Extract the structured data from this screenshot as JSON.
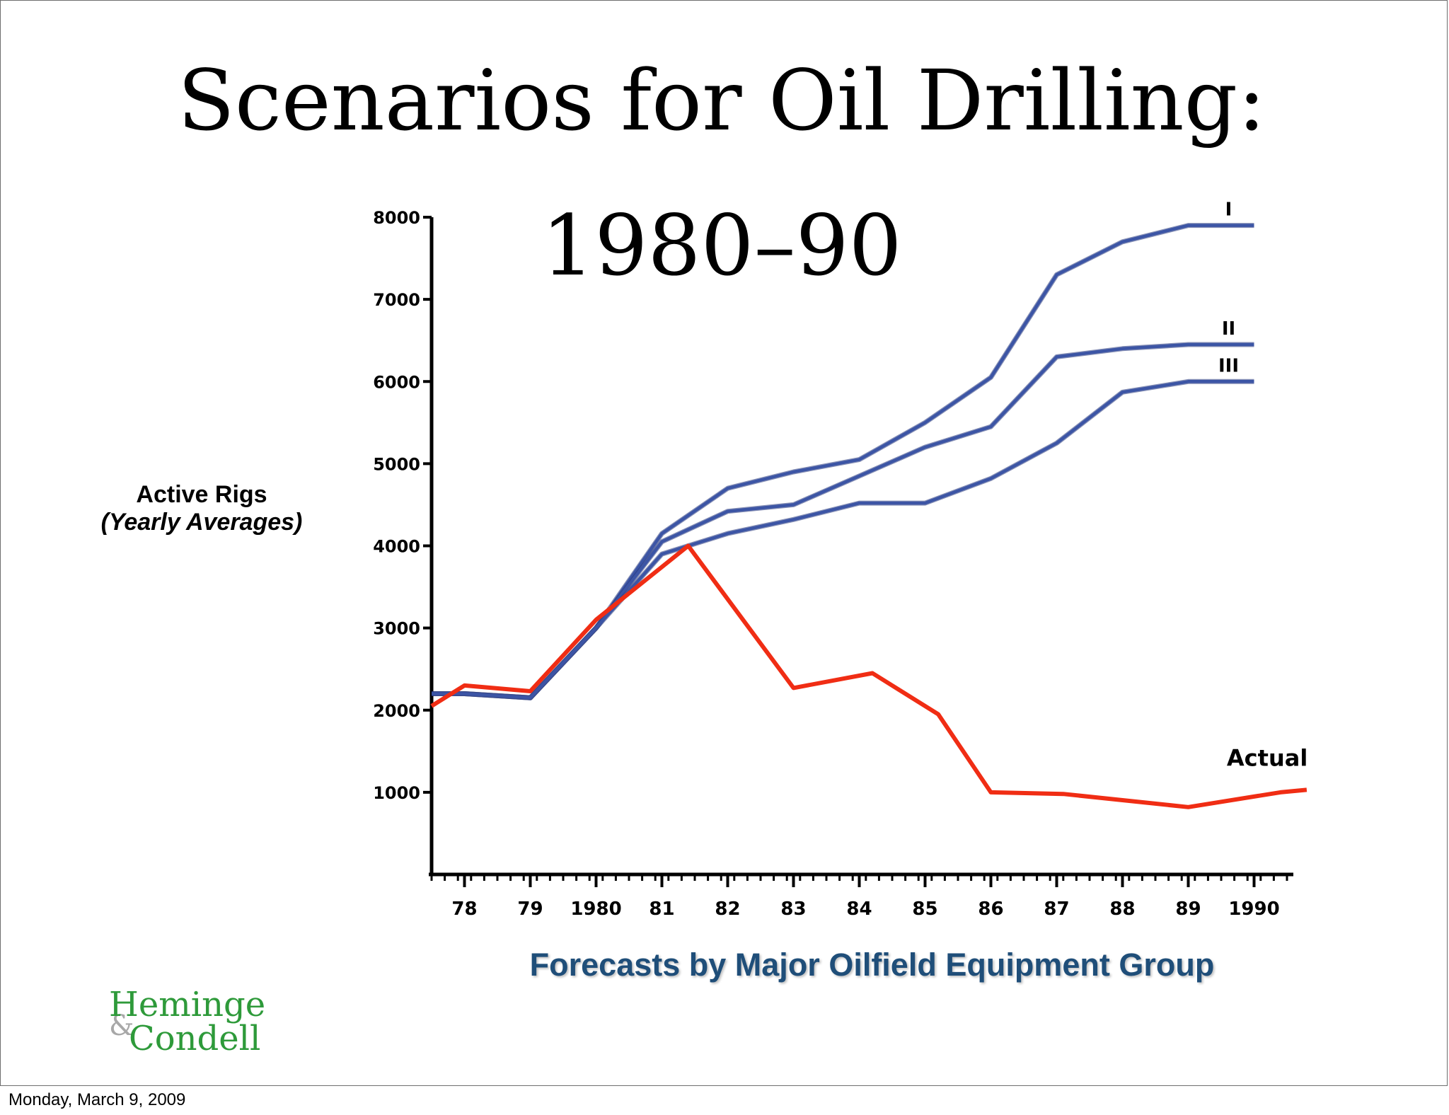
{
  "slide": {
    "title": "Scenarios for Oil Drilling: 1980–90",
    "caption": "Forecasts by Major Oilfield Equipment Group",
    "footer_date": "Monday, March 9, 2009",
    "logo": {
      "word1": "Heminge",
      "ampersand": "&",
      "word2": "Condell"
    }
  },
  "colors": {
    "scenario_line": "#3c55a5",
    "actual_line": "#f02d14",
    "caption": "#1f4e79",
    "logo": "#2e9a3a"
  },
  "chart_data": {
    "type": "line",
    "title": "Scenarios for Oil Drilling: 1980–90",
    "ylabel_line1": "Active Rigs",
    "ylabel_line2": "(Yearly Averages)",
    "xlabel": "Forecasts by Major Oilfield Equipment Group",
    "ylim": [
      0,
      8000
    ],
    "xlim": [
      1977.5,
      1990.5
    ],
    "yticks": [
      1000,
      2000,
      3000,
      4000,
      5000,
      6000,
      7000,
      8000
    ],
    "yticklabels": [
      "1000",
      "2000",
      "3000",
      "4000",
      "5000",
      "6000",
      "7000",
      "8000"
    ],
    "xticks": [
      1978,
      1979,
      1980,
      1981,
      1982,
      1983,
      1984,
      1985,
      1986,
      1987,
      1988,
      1989,
      1990
    ],
    "xticklabels": [
      "78",
      "79",
      "1980",
      "81",
      "82",
      "83",
      "84",
      "85",
      "86",
      "87",
      "88",
      "89",
      "1990"
    ],
    "grid": false,
    "series": [
      {
        "name": "I",
        "kind": "scenario",
        "x": [
          1977.5,
          1978.0,
          1979.0,
          1980.0,
          1981.0,
          1982.0,
          1983.0,
          1984.0,
          1985.0,
          1986.0,
          1987.0,
          1988.0,
          1989.0,
          1990.0
        ],
        "y": [
          2200,
          2200,
          2150,
          3000,
          4150,
          4700,
          4900,
          5050,
          5500,
          6050,
          7300,
          7700,
          7900,
          7900
        ]
      },
      {
        "name": "II",
        "kind": "scenario",
        "x": [
          1977.5,
          1978.0,
          1979.0,
          1980.0,
          1981.0,
          1982.0,
          1983.0,
          1984.0,
          1985.0,
          1986.0,
          1987.0,
          1988.0,
          1989.0,
          1990.0
        ],
        "y": [
          2200,
          2200,
          2150,
          3000,
          4050,
          4420,
          4500,
          4850,
          5200,
          5450,
          6300,
          6400,
          6450,
          6450
        ]
      },
      {
        "name": "III",
        "kind": "scenario",
        "x": [
          1977.5,
          1978.0,
          1979.0,
          1980.0,
          1981.0,
          1982.0,
          1983.0,
          1984.0,
          1985.0,
          1986.0,
          1987.0,
          1988.0,
          1989.0,
          1990.0
        ],
        "y": [
          2200,
          2200,
          2150,
          3000,
          3900,
          4150,
          4320,
          4520,
          4520,
          4820,
          5250,
          5870,
          6000,
          6000
        ]
      },
      {
        "name": "Actual",
        "kind": "actual",
        "x": [
          1977.5,
          1978.0,
          1979.0,
          1980.0,
          1981.4,
          1983.0,
          1984.2,
          1985.2,
          1986.0,
          1987.1,
          1989.0,
          1990.4,
          1990.8
        ],
        "y": [
          2050,
          2300,
          2230,
          3100,
          4000,
          2270,
          2450,
          1950,
          1000,
          980,
          820,
          1000,
          1030
        ]
      }
    ]
  }
}
